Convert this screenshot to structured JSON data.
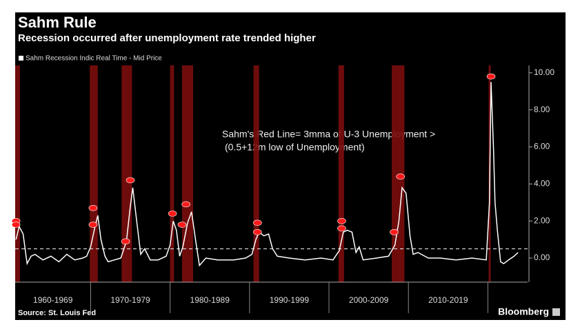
{
  "chart_data": {
    "type": "line",
    "title": "Sahm Rule",
    "subtitle": "Recession occurred after unemployment rate trended higher",
    "legend_label": "Sahm Recession Indic Real Time - Mid Price",
    "annotation": [
      "Sahm's Red Line= 3mma of U-3 Unemployment >",
      "(0.5+12m low of Unemployment)"
    ],
    "source": "Source: St. Louis Fed",
    "brand": "Bloomberg",
    "color": "#ffffff",
    "recession_color": "#7a0d0d",
    "marker_color": "#ff1a1a",
    "threshold": 0.5,
    "xlim": [
      1960.5,
      2025
    ],
    "ylim": [
      -1.3,
      10.4
    ],
    "yticks": [
      {
        "value": 0,
        "label": "0.00"
      },
      {
        "value": 2,
        "label": "2.00"
      },
      {
        "value": 4,
        "label": "4.00"
      },
      {
        "value": 6,
        "label": "6.00"
      },
      {
        "value": 8,
        "label": "8.00"
      },
      {
        "value": 10,
        "label": "10.00"
      }
    ],
    "xticks": [
      {
        "value": 1960,
        "label": "1960-1969"
      },
      {
        "value": 1970,
        "label": "1970-1979"
      },
      {
        "value": 1980,
        "label": "1980-1989"
      },
      {
        "value": 1990,
        "label": "1990-1999"
      },
      {
        "value": 2000,
        "label": "2000-2009"
      },
      {
        "value": 2010,
        "label": "2010-2019"
      }
    ],
    "recessions": [
      [
        1960.3,
        1961.1
      ],
      [
        1969.9,
        1970.9
      ],
      [
        1973.9,
        1975.2
      ],
      [
        1980.0,
        1980.5
      ],
      [
        1981.5,
        1982.9
      ],
      [
        1990.5,
        1991.2
      ],
      [
        2001.2,
        2001.9
      ],
      [
        2007.9,
        2009.5
      ],
      [
        2020.1,
        2020.3
      ]
    ],
    "markers": {
      "x": [
        1960.6,
        1960.6,
        1970.3,
        1970.3,
        1975.0,
        1974.4,
        1980.3,
        1982.0,
        1981.5,
        1991.0,
        1991.0,
        2001.6,
        2001.6,
        2009.0,
        2008.2,
        2020.4
      ],
      "y": [
        2.0,
        1.8,
        2.7,
        1.8,
        4.2,
        0.9,
        2.4,
        2.9,
        1.8,
        1.9,
        1.4,
        2.0,
        1.6,
        4.4,
        1.4,
        9.8
      ]
    },
    "x": [
      1960.6,
      1961.0,
      1961.5,
      1962.0,
      1962.5,
      1963,
      1964,
      1965,
      1966,
      1967,
      1968,
      1969,
      1969.5,
      1970.0,
      1970.5,
      1970.9,
      1971.3,
      1971.8,
      1972.2,
      1973,
      1973.8,
      1974.5,
      1975.0,
      1975.3,
      1975.8,
      1976.3,
      1976.8,
      1977.5,
      1978.5,
      1979.5,
      1980.0,
      1980.4,
      1980.8,
      1981.2,
      1981.6,
      1982.2,
      1982.7,
      1983.2,
      1983.7,
      1984.5,
      1986,
      1988,
      1989.5,
      1990.3,
      1990.8,
      1991.2,
      1991.8,
      1992.4,
      1992.9,
      1993.5,
      1995,
      1997,
      1999,
      2000.5,
      2001.3,
      2001.8,
      2002.3,
      2002.9,
      2003.4,
      2003.8,
      2004.3,
      2006,
      2007.5,
      2008.3,
      2008.8,
      2009.2,
      2009.7,
      2010.2,
      2010.6,
      2011.2,
      2012.5,
      2014,
      2016,
      2018,
      2019.8,
      2020.2,
      2020.4,
      2020.7,
      2020.9,
      2021.2,
      2021.6,
      2022.0,
      2022.6,
      2023.3,
      2023.8
    ],
    "values": [
      1.0,
      1.7,
      1.3,
      -0.3,
      0.1,
      0.2,
      -0.1,
      0.1,
      -0.2,
      0.2,
      -0.1,
      0,
      0.1,
      0.6,
      1.6,
      2.3,
      1.0,
      0.1,
      -0.2,
      -0.1,
      0,
      0.9,
      2.8,
      3.8,
      2.0,
      0.2,
      0.5,
      -0.1,
      -0.1,
      0.1,
      0.7,
      2.0,
      1.5,
      0.1,
      0.6,
      1.9,
      2.5,
      1.0,
      -0.4,
      0,
      -0.1,
      -0.1,
      0,
      0.2,
      1.0,
      1.4,
      1.2,
      1.3,
      0.5,
      0.1,
      0,
      -0.1,
      0,
      -0.1,
      0.4,
      1.4,
      1.5,
      1.4,
      0.3,
      0.6,
      -0.1,
      0,
      0.1,
      0.7,
      2.0,
      3.8,
      3.5,
      1.2,
      0.2,
      0.3,
      0,
      0,
      -0.1,
      0,
      -0.1,
      3.0,
      9.5,
      6.0,
      3.0,
      1.5,
      -0.2,
      -0.3,
      -0.1,
      0.1,
      0.3
    ]
  }
}
